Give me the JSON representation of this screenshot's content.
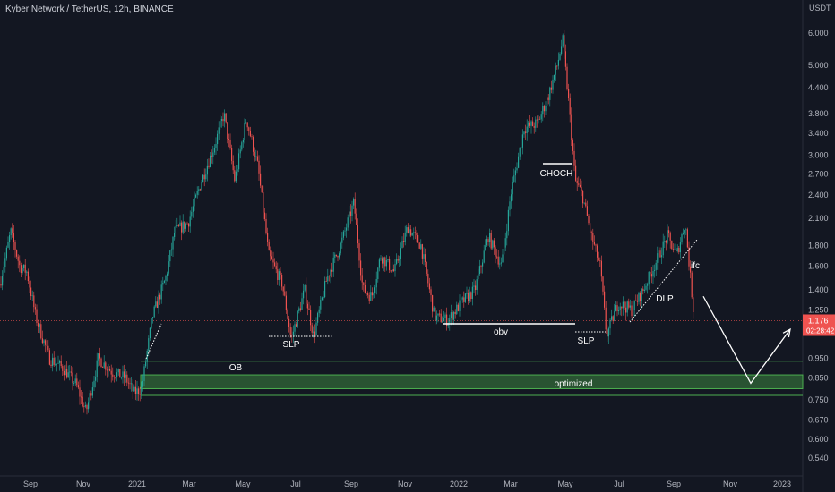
{
  "chart_data": {
    "type": "candlestick",
    "title": "Kyber Network / TetherUS, 12h, BINANCE",
    "currency": "USDT",
    "scale": "log",
    "ylim": [
      0.5,
      6.8
    ],
    "y_ticks": [
      6.0,
      5.0,
      4.4,
      3.8,
      3.4,
      3.0,
      2.7,
      2.4,
      2.1,
      1.8,
      1.6,
      1.4,
      1.25,
      0.95,
      0.85,
      0.75,
      0.67,
      0.6,
      0.54
    ],
    "y_tick_labels": [
      "6.000",
      "5.000",
      "4.400",
      "3.800",
      "3.400",
      "3.000",
      "2.700",
      "2.400",
      "2.100",
      "1.800",
      "1.600",
      "1.400",
      "1.250",
      "0.950",
      "0.850",
      "0.750",
      "0.670",
      "0.600",
      "0.540"
    ],
    "x_ticks": [
      "Sep",
      "Nov",
      "2021",
      "Mar",
      "May",
      "Jul",
      "Sep",
      "Nov",
      "2022",
      "Mar",
      "May",
      "Jul",
      "Sep",
      "Nov",
      "2023"
    ],
    "price_path": [
      [
        0,
        1.45
      ],
      [
        12,
        1.95
      ],
      [
        22,
        1.6
      ],
      [
        30,
        1.55
      ],
      [
        40,
        1.2
      ],
      [
        55,
        0.95
      ],
      [
        70,
        0.9
      ],
      [
        85,
        0.82
      ],
      [
        96,
        0.7
      ],
      [
        110,
        0.95
      ],
      [
        125,
        0.88
      ],
      [
        140,
        0.85
      ],
      [
        150,
        0.78
      ],
      [
        158,
        0.8
      ],
      [
        170,
        1.2
      ],
      [
        185,
        1.5
      ],
      [
        195,
        1.95
      ],
      [
        210,
        2.05
      ],
      [
        225,
        2.6
      ],
      [
        240,
        3.2
      ],
      [
        250,
        3.8
      ],
      [
        262,
        2.6
      ],
      [
        275,
        3.7
      ],
      [
        288,
        2.8
      ],
      [
        300,
        1.7
      ],
      [
        315,
        1.45
      ],
      [
        325,
        1.06
      ],
      [
        340,
        1.4
      ],
      [
        350,
        1.08
      ],
      [
        365,
        1.5
      ],
      [
        380,
        1.8
      ],
      [
        395,
        2.3
      ],
      [
        405,
        1.4
      ],
      [
        415,
        1.35
      ],
      [
        425,
        1.7
      ],
      [
        440,
        1.55
      ],
      [
        455,
        2.0
      ],
      [
        470,
        1.8
      ],
      [
        485,
        1.2
      ],
      [
        500,
        1.18
      ],
      [
        515,
        1.3
      ],
      [
        530,
        1.4
      ],
      [
        545,
        1.9
      ],
      [
        560,
        1.6
      ],
      [
        570,
        2.4
      ],
      [
        585,
        3.5
      ],
      [
        600,
        3.6
      ],
      [
        612,
        4.2
      ],
      [
        622,
        5.0
      ],
      [
        628,
        5.8
      ],
      [
        635,
        4.0
      ],
      [
        642,
        2.6
      ],
      [
        650,
        2.4
      ],
      [
        660,
        1.9
      ],
      [
        670,
        1.6
      ],
      [
        677,
        1.08
      ],
      [
        690,
        1.3
      ],
      [
        705,
        1.25
      ],
      [
        718,
        1.4
      ],
      [
        730,
        1.6
      ],
      [
        745,
        1.9
      ],
      [
        755,
        1.7
      ],
      [
        765,
        2.05
      ],
      [
        770,
        1.55
      ],
      [
        775,
        1.18
      ]
    ],
    "annotations": {
      "ob": "OB",
      "optimized": "optimized",
      "slp1": "SLP",
      "slp2": "SLP",
      "obv": "obv",
      "choch": "CHOCH",
      "dlp": "DLP",
      "ifc": "ifc"
    },
    "zones": {
      "ob_top": 0.935,
      "opt_top": 0.865,
      "opt_bottom": 0.8,
      "ob_bottom": 0.77
    },
    "current_price": "1.176",
    "countdown": "02:28:42",
    "projection": [
      [
        785,
        1.35
      ],
      [
        838,
        0.825
      ],
      [
        882,
        1.12
      ]
    ]
  }
}
